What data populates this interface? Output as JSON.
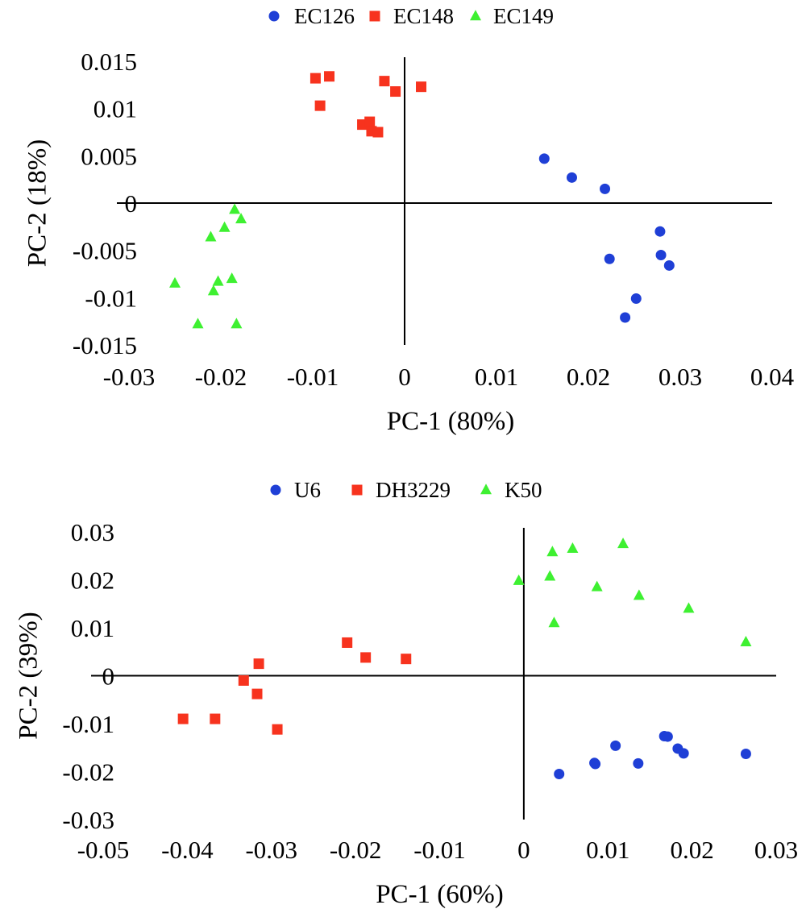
{
  "chart_data": [
    {
      "type": "scatter",
      "xlabel": "PC-1 (80%)",
      "ylabel": "PC-2 (18%)",
      "xlim": [
        -0.03,
        0.04
      ],
      "ylim": [
        -0.015,
        0.015
      ],
      "xticks": [
        -0.03,
        -0.02,
        -0.01,
        0,
        0.01,
        0.02,
        0.03,
        0.04
      ],
      "xtick_labels": [
        "-0.03",
        "-0.02",
        "-0.01",
        "0",
        "0.01",
        "0.02",
        "0.03",
        "0.04"
      ],
      "yticks": [
        0.015,
        0.01,
        0.005,
        0,
        -0.005,
        -0.01,
        -0.015
      ],
      "ytick_labels": [
        "0.015",
        "0.01",
        "0.005",
        "0",
        "-0.005",
        "-0.01",
        "-0.015"
      ],
      "legend_position": "top-center",
      "series": [
        {
          "name": "EC126",
          "marker": "circle",
          "color": "#1f3fd6",
          "points": [
            [
              0.0152,
              0.0047
            ],
            [
              0.0182,
              0.0027
            ],
            [
              0.0218,
              0.0015
            ],
            [
              0.0278,
              -0.003
            ],
            [
              0.0279,
              -0.0055
            ],
            [
              0.0288,
              -0.0066
            ],
            [
              0.0223,
              -0.0059
            ],
            [
              0.0252,
              -0.0101
            ],
            [
              0.024,
              -0.0121
            ]
          ]
        },
        {
          "name": "EC148",
          "marker": "square",
          "color": "#f7331e",
          "points": [
            [
              -0.0097,
              0.0132
            ],
            [
              -0.0082,
              0.0134
            ],
            [
              -0.0092,
              0.0103
            ],
            [
              -0.0022,
              0.0129
            ],
            [
              -0.001,
              0.0118
            ],
            [
              0.0018,
              0.0123
            ],
            [
              -0.0046,
              0.0083
            ],
            [
              -0.0038,
              0.0086
            ],
            [
              -0.0036,
              0.0076
            ],
            [
              -0.0029,
              0.0075
            ]
          ]
        },
        {
          "name": "EC149",
          "marker": "triangle",
          "color": "#3ef031",
          "points": [
            [
              -0.0185,
              -0.0007
            ],
            [
              -0.0178,
              -0.0017
            ],
            [
              -0.0211,
              -0.0036
            ],
            [
              -0.0196,
              -0.0026
            ],
            [
              -0.025,
              -0.0085
            ],
            [
              -0.0203,
              -0.0083
            ],
            [
              -0.0208,
              -0.0093
            ],
            [
              -0.0188,
              -0.008
            ],
            [
              -0.0225,
              -0.0128
            ],
            [
              -0.0183,
              -0.0128
            ]
          ]
        }
      ]
    },
    {
      "type": "scatter",
      "xlabel": "PC-1 (60%)",
      "ylabel": "PC-2 (39%)",
      "xlim": [
        -0.05,
        0.03
      ],
      "ylim": [
        -0.03,
        0.03
      ],
      "xticks": [
        -0.05,
        -0.04,
        -0.03,
        -0.02,
        -0.01,
        0,
        0.01,
        0.02,
        0.03
      ],
      "xtick_labels": [
        "-0.05",
        "-0.04",
        "-0.03",
        "-0.02",
        "-0.01",
        "0",
        "0.01",
        "0.02",
        "0.03"
      ],
      "yticks": [
        0.03,
        0.02,
        0.01,
        0,
        -0.01,
        -0.02,
        -0.03
      ],
      "ytick_labels": [
        "0.03",
        "0.02",
        "0.01",
        "0",
        "-0.01",
        "-0.02",
        "-0.03"
      ],
      "legend_position": "top-center",
      "series": [
        {
          "name": "U6",
          "marker": "circle",
          "color": "#1f3fd6",
          "points": [
            [
              0.0042,
              -0.0205
            ],
            [
              0.0084,
              -0.0182
            ],
            [
              0.0085,
              -0.0184
            ],
            [
              0.0109,
              -0.0146
            ],
            [
              0.0136,
              -0.0183
            ],
            [
              0.0167,
              -0.0126
            ],
            [
              0.0171,
              -0.0127
            ],
            [
              0.0183,
              -0.0152
            ],
            [
              0.019,
              -0.0162
            ],
            [
              0.0264,
              -0.0163
            ]
          ]
        },
        {
          "name": "DH3229",
          "marker": "square",
          "color": "#f7331e",
          "points": [
            [
              -0.021,
              0.0069
            ],
            [
              -0.0188,
              0.0038
            ],
            [
              -0.014,
              0.0035
            ],
            [
              -0.0315,
              0.0025
            ],
            [
              -0.0333,
              -0.001
            ],
            [
              -0.0317,
              -0.0038
            ],
            [
              -0.0405,
              -0.009
            ],
            [
              -0.0367,
              -0.009
            ],
            [
              -0.0293,
              -0.0112
            ]
          ]
        },
        {
          "name": "K50",
          "marker": "triangle",
          "color": "#3ef031",
          "points": [
            [
              0.0118,
              0.0275
            ],
            [
              0.0058,
              0.0265
            ],
            [
              0.0034,
              0.0258
            ],
            [
              -0.0006,
              0.0198
            ],
            [
              0.0031,
              0.0207
            ],
            [
              0.0087,
              0.0185
            ],
            [
              0.0137,
              0.0167
            ],
            [
              0.0196,
              0.014
            ],
            [
              0.0036,
              0.011
            ],
            [
              0.0264,
              0.007
            ]
          ]
        }
      ]
    }
  ]
}
